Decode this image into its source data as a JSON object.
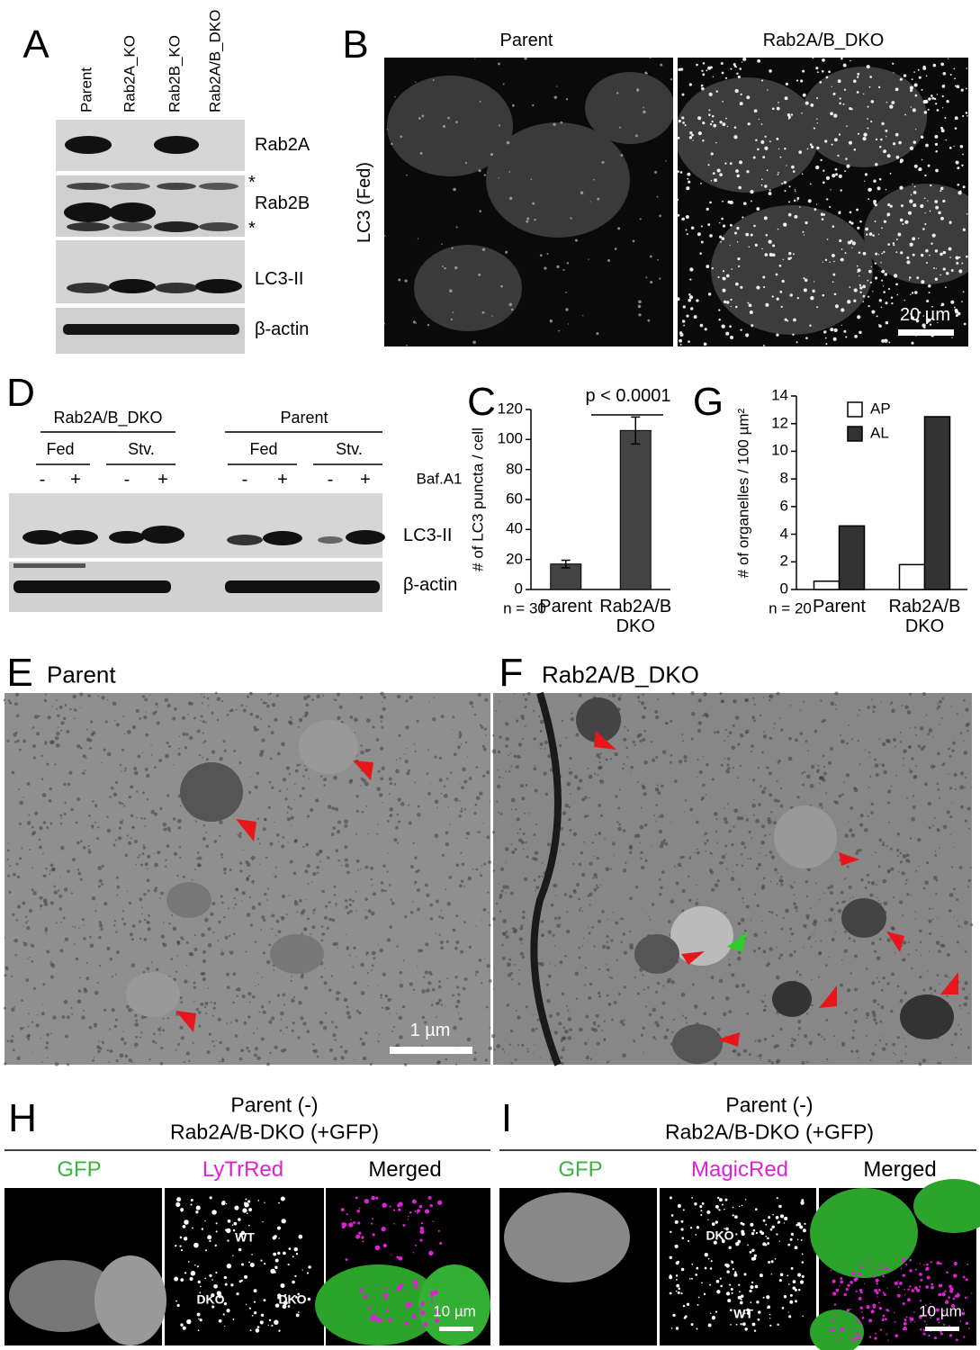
{
  "panel_labels": [
    "A",
    "B",
    "C",
    "D",
    "E",
    "F",
    "G",
    "H",
    "I"
  ],
  "panel_a": {
    "lanes": [
      "Parent",
      "Rab2A_KO",
      "Rab2B_KO",
      "Rab2A/B_DKO"
    ],
    "blots": [
      "Rab2A",
      "Rab2B",
      "LC3-II",
      "β-actin"
    ],
    "asterisks": [
      "*",
      "*"
    ]
  },
  "panel_b": {
    "columns": [
      "Parent",
      "Rab2A/B_DKO"
    ],
    "row_label": "LC3 (Fed)",
    "scale_bar": "20 µm"
  },
  "panel_d": {
    "groups": [
      "Rab2A/B_DKO",
      "Parent"
    ],
    "conditions": [
      "Fed",
      "Stv.",
      "Fed",
      "Stv."
    ],
    "treatment": [
      "-",
      "+",
      "-",
      "+",
      "-",
      "+",
      "-",
      "+"
    ],
    "treatment_label": "Baf.A1",
    "blots": [
      "LC3-II",
      "β-actin"
    ]
  },
  "panel_e": {
    "title": "Parent",
    "scale_bar": "1 µm"
  },
  "panel_f": {
    "title": "Rab2A/B_DKO"
  },
  "panel_h": {
    "title": [
      "Parent (-)",
      "Rab2A/B-DKO (+GFP)"
    ],
    "channels": [
      "GFP",
      "LyTrRed",
      "Merged"
    ],
    "cell_labels": [
      "WT",
      "DKO",
      "DKO"
    ],
    "scale_bar": "10 µm"
  },
  "panel_i": {
    "title": [
      "Parent (-)",
      "Rab2A/B-DKO (+GFP)"
    ],
    "channels": [
      "GFP",
      "MagicRed",
      "Merged"
    ],
    "cell_labels": [
      "DKO",
      "WT"
    ],
    "scale_bar": "10 µm"
  },
  "chart_data": [
    {
      "type": "bar",
      "y_label": "# of LC3 puncta / cell",
      "categories": [
        "Parent",
        "Rab2A/B\nDKO"
      ],
      "values": [
        17,
        106
      ],
      "errors": [
        2.5,
        9
      ],
      "color": "#444444",
      "ylim": [
        0,
        120
      ],
      "yticks": [
        0,
        20,
        40,
        60,
        80,
        100,
        120
      ],
      "annotation": "p < 0.0001",
      "sample_size": "n = 30"
    },
    {
      "type": "grouped-bar",
      "y_label": "# of organelles / 100 µm²",
      "categories": [
        "Parent",
        "Rab2A/B\nDKO"
      ],
      "series": [
        {
          "name": "AP",
          "color": "#ffffff",
          "values": [
            0.6,
            1.8
          ]
        },
        {
          "name": "AL",
          "color": "#333333",
          "values": [
            4.6,
            12.5
          ]
        }
      ],
      "ylim": [
        0,
        14
      ],
      "yticks": [
        0,
        2,
        4,
        6,
        8,
        10,
        12,
        14
      ],
      "sample_size": "n = 20"
    }
  ]
}
